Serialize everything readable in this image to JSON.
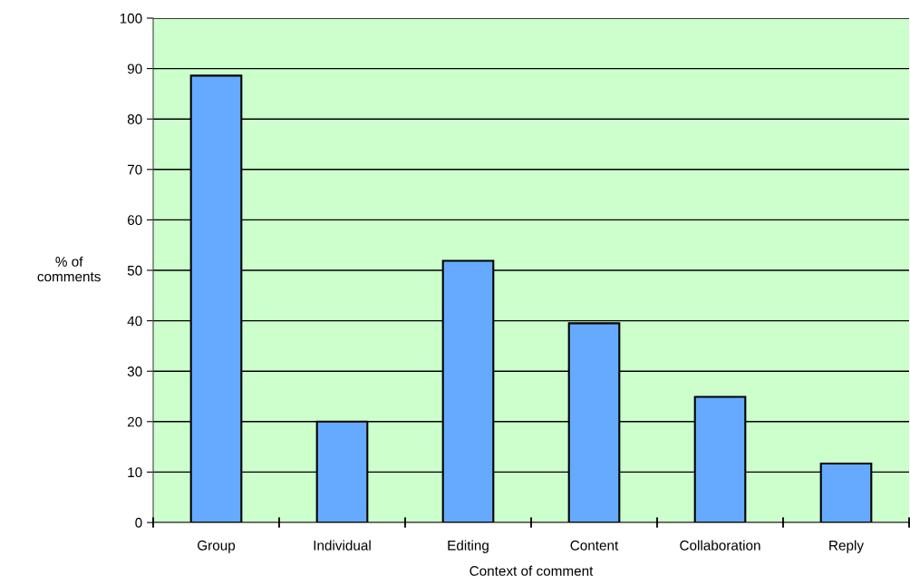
{
  "chart_data": {
    "type": "bar",
    "xlabel": "Context of comment",
    "ylabel": "% of\ncomments",
    "categories": [
      "Group",
      "Individual",
      "Editing",
      "Content",
      "Collaboration",
      "Reply"
    ],
    "values": [
      88.6,
      20.0,
      51.9,
      39.5,
      24.9,
      11.7
    ],
    "color": "#66aaff",
    "ylim": [
      0,
      100
    ],
    "yticks": [
      0,
      10,
      20,
      30,
      40,
      50,
      60,
      70,
      80,
      90,
      100
    ],
    "grid": "y"
  }
}
